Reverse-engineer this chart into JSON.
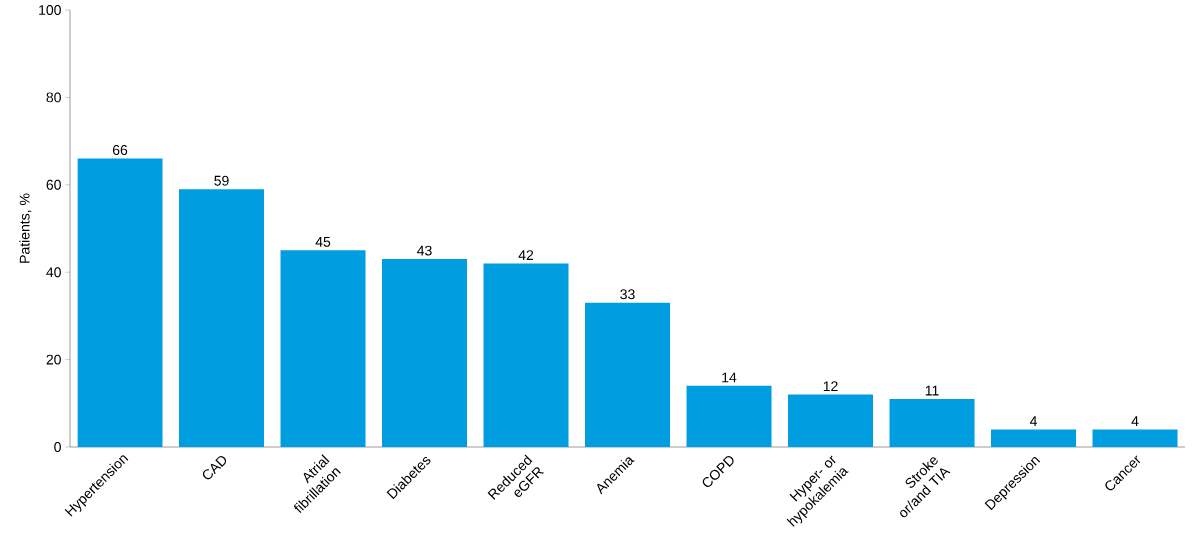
{
  "chart_data": {
    "type": "bar",
    "ylabel": "Patients, %",
    "categories": [
      "Hypertension",
      "CAD",
      "Atrial fibrillation",
      "Diabetes",
      "Reduced eGFR",
      "Anemia",
      "COPD",
      "Hyper- or hypokalemia",
      "Stroke or/and TIA",
      "Depression",
      "Cancer"
    ],
    "values": [
      66,
      59,
      45,
      43,
      42,
      33,
      14,
      12,
      11,
      4,
      4
    ],
    "color": "#009ee0",
    "ylim": [
      0,
      100
    ],
    "yticks": [
      0,
      20,
      40,
      60,
      80,
      100
    ],
    "data_labels": true
  }
}
